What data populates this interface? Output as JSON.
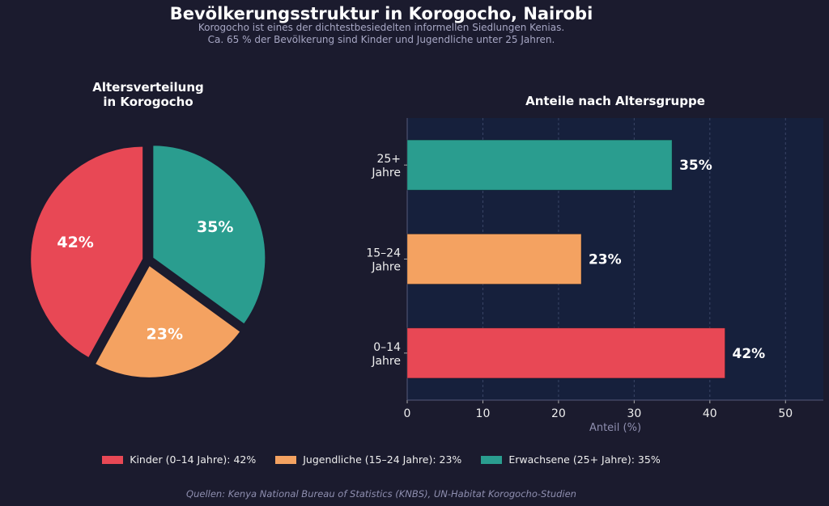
{
  "title": "Bevölkerungsstruktur in Korogocho, Nairobi",
  "subtitle_lines": [
    "Korogocho ist eines der dichtestbesiedelten informellen Siedlungen Kenias.",
    "Ca. 65 % der Bevölkerung sind Kinder und Jugendliche unter 25 Jahren."
  ],
  "source": "Quellen: Kenya National Bureau of Statistics (KNBS), UN-Habitat Korogocho-Studien",
  "legend": [
    {
      "label": "Kinder (0–14 Jahre): 42%",
      "color": "#e84855"
    },
    {
      "label": "Jugendliche (15–24 Jahre): 23%",
      "color": "#f4a261"
    },
    {
      "label": "Erwachsene (25+ Jahre): 35%",
      "color": "#2a9d8f"
    }
  ],
  "chart_data": [
    {
      "type": "pie",
      "title_lines": [
        "Altersverteilung",
        "in Korogocho"
      ],
      "start_angle": 90,
      "direction": "counterclockwise",
      "exploded": true,
      "slices": [
        {
          "value": 42,
          "label": "42%",
          "color": "#e84855"
        },
        {
          "value": 23,
          "label": "23%",
          "color": "#f4a261"
        },
        {
          "value": 35,
          "label": "35%",
          "color": "#2a9d8f"
        }
      ]
    },
    {
      "type": "bar",
      "orientation": "horizontal",
      "title": "Anteile nach Altersgruppe",
      "categories": [
        [
          "0–14",
          "Jahre"
        ],
        [
          "15–24",
          "Jahre"
        ],
        [
          "25+",
          "Jahre"
        ]
      ],
      "values": [
        42,
        23,
        35
      ],
      "data_labels": [
        "42%",
        "23%",
        "35%"
      ],
      "colors": [
        "#e84855",
        "#f4a261",
        "#2a9d8f"
      ],
      "xlabel": "Anteil (%)",
      "xlim": [
        0,
        55
      ],
      "xticks": [
        0,
        10,
        20,
        30,
        40,
        50
      ],
      "grid": "vertical dashed",
      "plot_background": "#16203c"
    }
  ]
}
